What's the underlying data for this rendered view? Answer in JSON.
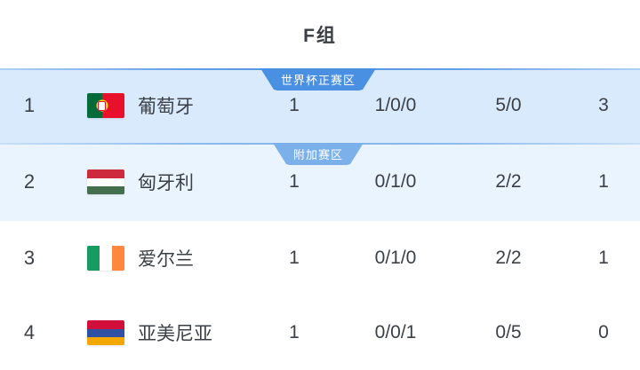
{
  "header": {
    "title": "F组"
  },
  "zones": {
    "world_cup": "世界杯正赛区",
    "playoff": "附加赛区"
  },
  "table": {
    "rows": [
      {
        "rank": "1",
        "team": "葡萄牙",
        "flag": "portugal-flag",
        "played": "1",
        "record": "1/0/0",
        "goals": "5/0",
        "points": "3",
        "badge": "世界杯正赛区"
      },
      {
        "rank": "2",
        "team": "匈牙利",
        "flag": "hungary-flag",
        "played": "1",
        "record": "0/1/0",
        "goals": "2/2",
        "points": "1",
        "badge": "附加赛区"
      },
      {
        "rank": "3",
        "team": "爱尔兰",
        "flag": "ireland-flag",
        "played": "1",
        "record": "0/1/0",
        "goals": "2/2",
        "points": "1"
      },
      {
        "rank": "4",
        "team": "亚美尼亚",
        "flag": "armenia-flag",
        "played": "1",
        "record": "0/0/1",
        "goals": "0/5",
        "points": "0"
      }
    ]
  },
  "colors": {
    "zone_main_badge": "#4a90e2",
    "zone_sub_badge": "#7cb0ea",
    "row_qualified_bg": "#d9eafc",
    "row_playoff_bg": "#eaf4fe",
    "text": "#3b3f46",
    "flag_portugal": [
      "#046a38",
      "#e8112d",
      "#ffe900"
    ],
    "flag_hungary": [
      "#cd2a3e",
      "#ffffff",
      "#436f4d"
    ],
    "flag_ireland": [
      "#169b62",
      "#ffffff",
      "#ff883e"
    ],
    "flag_armenia": [
      "#d0103a",
      "#2e51a3",
      "#f2a800"
    ]
  }
}
